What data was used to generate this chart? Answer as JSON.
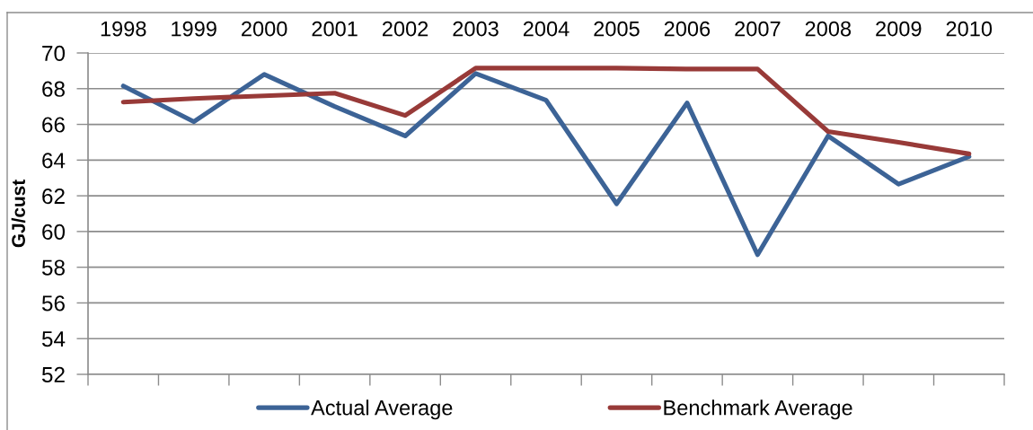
{
  "chart_data": {
    "type": "line",
    "ylabel": "GJ/cust",
    "categories": [
      "1998",
      "1999",
      "2000",
      "2001",
      "2002",
      "2003",
      "2004",
      "2005",
      "2006",
      "2007",
      "2008",
      "2009",
      "2010"
    ],
    "series": [
      {
        "name": "Actual Average",
        "color": "#3c6396",
        "values": [
          68.15,
          66.15,
          68.8,
          67.0,
          65.35,
          68.85,
          67.35,
          61.55,
          67.2,
          58.7,
          65.35,
          62.65,
          64.2
        ]
      },
      {
        "name": "Benchmark Average",
        "color": "#983a38",
        "values": [
          67.25,
          67.45,
          67.6,
          67.75,
          66.5,
          69.15,
          69.15,
          69.15,
          69.1,
          69.1,
          65.6,
          65.0,
          64.35
        ]
      }
    ],
    "ylim": [
      52,
      70
    ],
    "yticks": [
      52,
      54,
      56,
      58,
      60,
      62,
      64,
      66,
      68,
      70
    ],
    "grid": "y",
    "legend": "bottom"
  }
}
